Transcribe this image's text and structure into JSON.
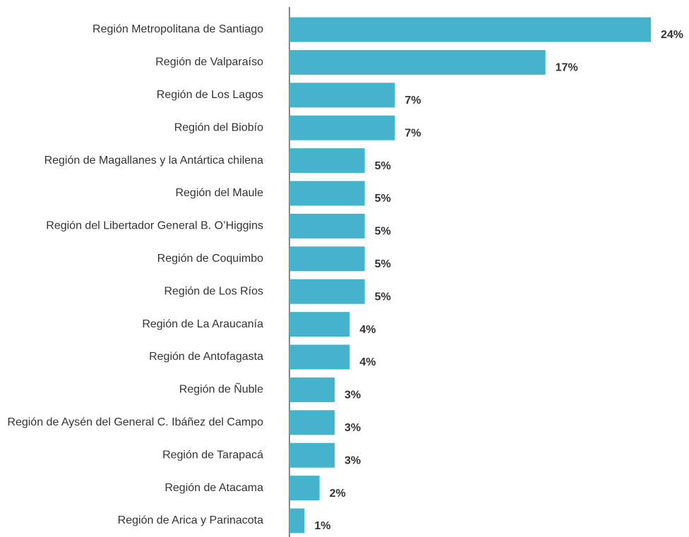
{
  "chart_data": {
    "type": "barh",
    "categories": [
      "Región Metropolitana de Santiago",
      "Región de Valparaíso",
      "Región de Los Lagos",
      "Región del Biobío",
      "Región de Magallanes y la Antártica chilena",
      "Región del Maule",
      "Región del Libertador General B. O’Higgins",
      "Región de Coquimbo",
      "Región de Los Ríos",
      "Región de La Araucanía",
      "Región de Antofagasta",
      "Región de Ñuble",
      "Región de Aysén del General C. Ibáñez del Campo",
      "Región de Tarapacá",
      "Región de Atacama",
      "Región de Arica y Parinacota"
    ],
    "values": [
      24,
      17,
      7,
      7,
      5,
      5,
      5,
      5,
      5,
      4,
      4,
      3,
      3,
      3,
      2,
      1
    ],
    "value_labels": [
      "24%",
      "17%",
      "7%",
      "7%",
      "5%",
      "5%",
      "5%",
      "5%",
      "5%",
      "4%",
      "4%",
      "3%",
      "3%",
      "3%",
      "2%",
      "1%"
    ],
    "color": "#45b3cc",
    "xlim": [
      0,
      24
    ]
  }
}
